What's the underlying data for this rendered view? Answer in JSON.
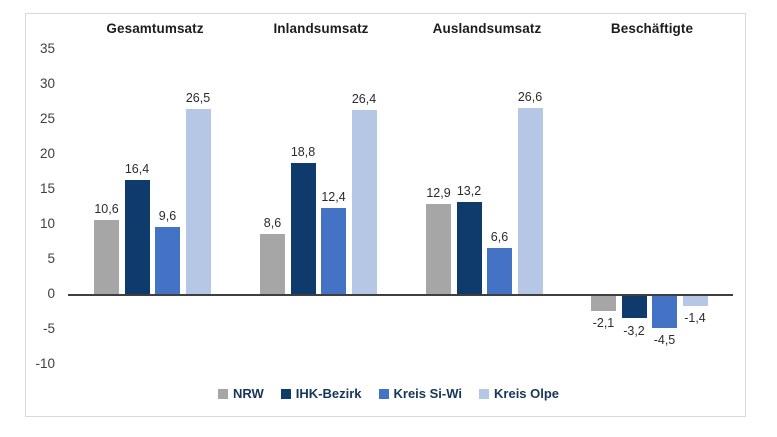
{
  "chart_data": {
    "type": "bar",
    "title": "",
    "categories": [
      "Gesamtumsatz",
      "Inlandsumsatz",
      "Auslandsumsatz",
      "Beschäftigte"
    ],
    "series": [
      {
        "name": "NRW",
        "color": "#a6a6a6",
        "values": [
          10.6,
          8.6,
          12.9,
          -2.1
        ]
      },
      {
        "name": "IHK-Bezirk",
        "color": "#0e3b6c",
        "values": [
          16.4,
          18.8,
          13.2,
          -3.2
        ]
      },
      {
        "name": "Kreis Si-Wi",
        "color": "#4472c4",
        "values": [
          9.6,
          12.4,
          6.6,
          -4.5
        ]
      },
      {
        "name": "Kreis Olpe",
        "color": "#b5c7e5",
        "values": [
          26.5,
          26.4,
          26.6,
          -1.4
        ]
      }
    ],
    "y_ticks": [
      35,
      30,
      25,
      20,
      15,
      10,
      5,
      0,
      -5,
      -10
    ],
    "ylim": [
      -10,
      35
    ],
    "grid": false,
    "legend_position": "bottom",
    "decimal_separator": ",",
    "value_label_format": "one-decimal-comma",
    "category_titles_position": "top"
  },
  "colors": {
    "axis_line": "#3f3f3f",
    "chart_border": "#d9d9d9",
    "category_title_text": "#1d1d1b",
    "tick_text": "#404040",
    "value_text": "#2b2b2b",
    "legend_text": "#16365c",
    "background": "#ffffff"
  }
}
